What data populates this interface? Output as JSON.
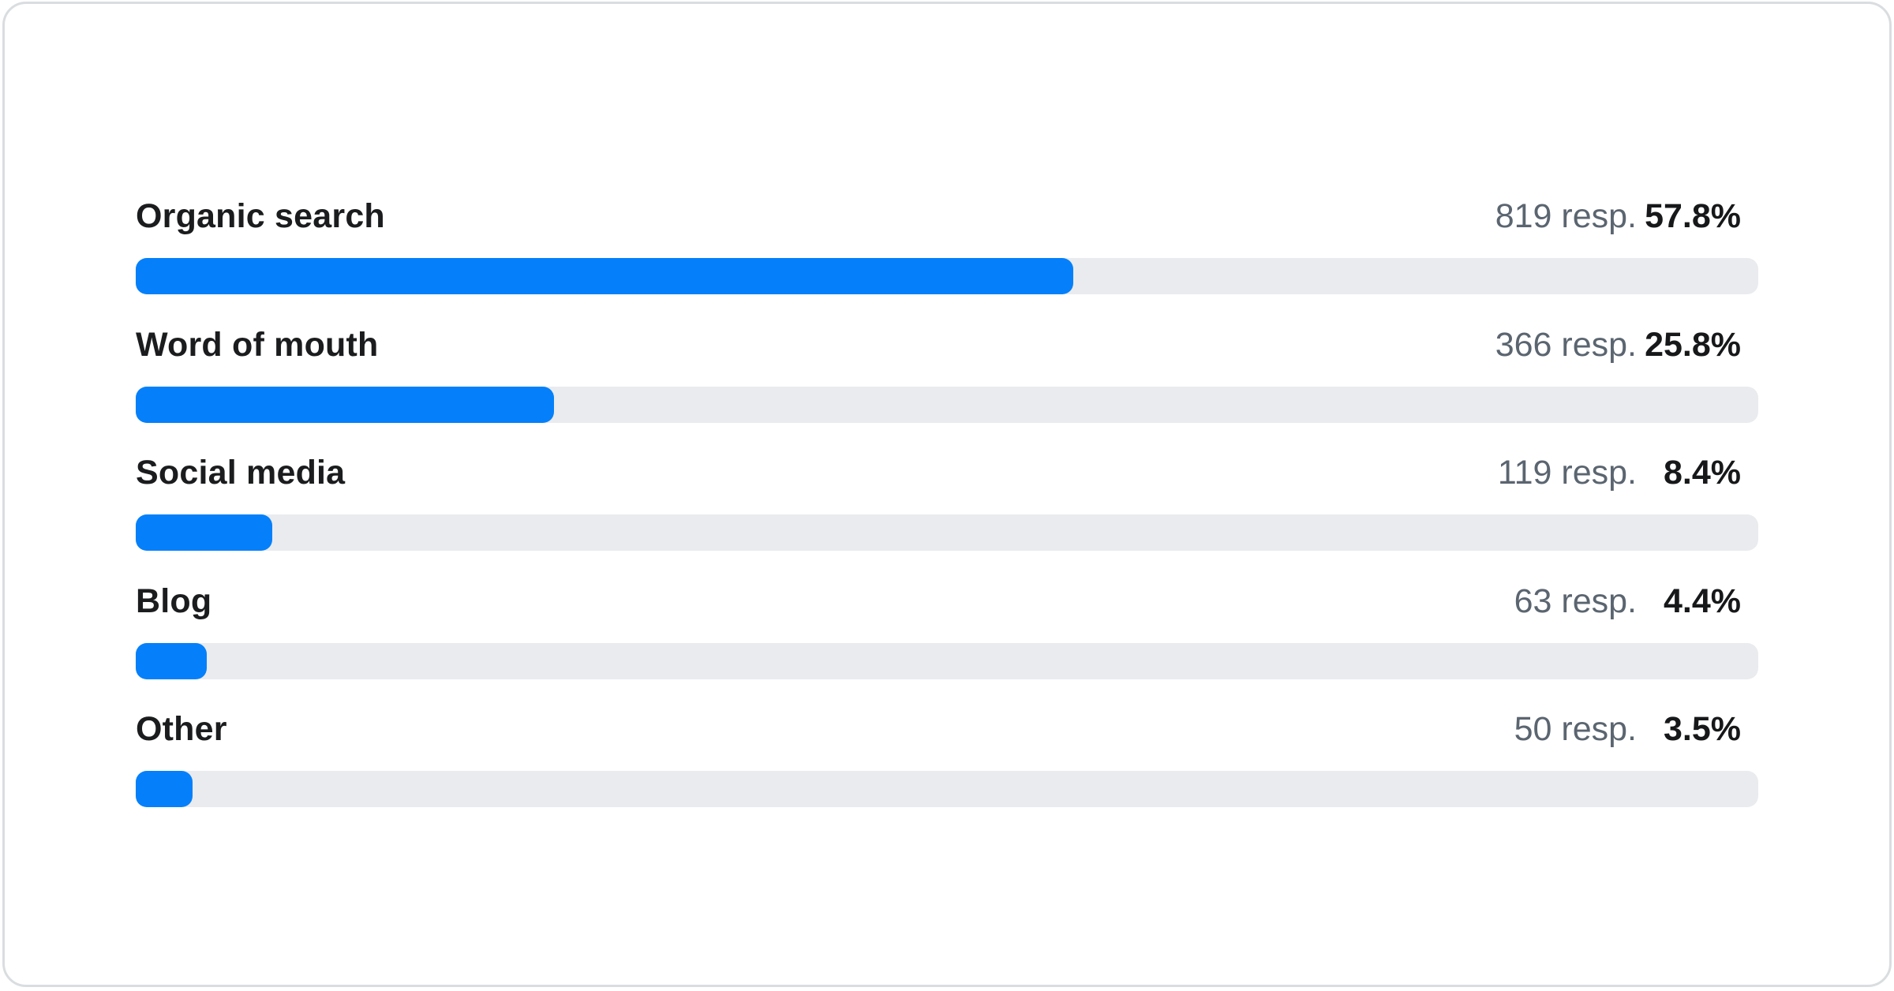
{
  "chart": {
    "rows": [
      {
        "label": "Organic search",
        "responses": "819 resp.",
        "percent": "57.8%",
        "value": 57.8
      },
      {
        "label": "Word of mouth",
        "responses": "366 resp.",
        "percent": "25.8%",
        "value": 25.8
      },
      {
        "label": "Social media",
        "responses": "119 resp.",
        "percent": "8.4%",
        "value": 8.4
      },
      {
        "label": "Blog",
        "responses": "63 resp.",
        "percent": "4.4%",
        "value": 4.4
      },
      {
        "label": "Other",
        "responses": "50 resp.",
        "percent": "3.5%",
        "value": 3.5
      }
    ]
  },
  "colors": {
    "bar_fill": "#0580FA",
    "bar_track": "#E9EBEF",
    "label": "#1B1C1E",
    "responses_text": "#5B6570",
    "percent_text": "#17181A",
    "card_border": "#DADDE0",
    "card_background": "#FFFFFF"
  },
  "chart_data": {
    "type": "bar",
    "orientation": "horizontal",
    "categories": [
      "Organic search",
      "Word of mouth",
      "Social media",
      "Blog",
      "Other"
    ],
    "values": [
      57.8,
      25.8,
      8.4,
      4.4,
      3.5
    ],
    "counts": [
      819,
      366,
      119,
      63,
      50
    ],
    "value_unit": "%",
    "count_suffix": "resp.",
    "xlim": [
      0,
      100
    ],
    "grid": false,
    "legend": false
  }
}
